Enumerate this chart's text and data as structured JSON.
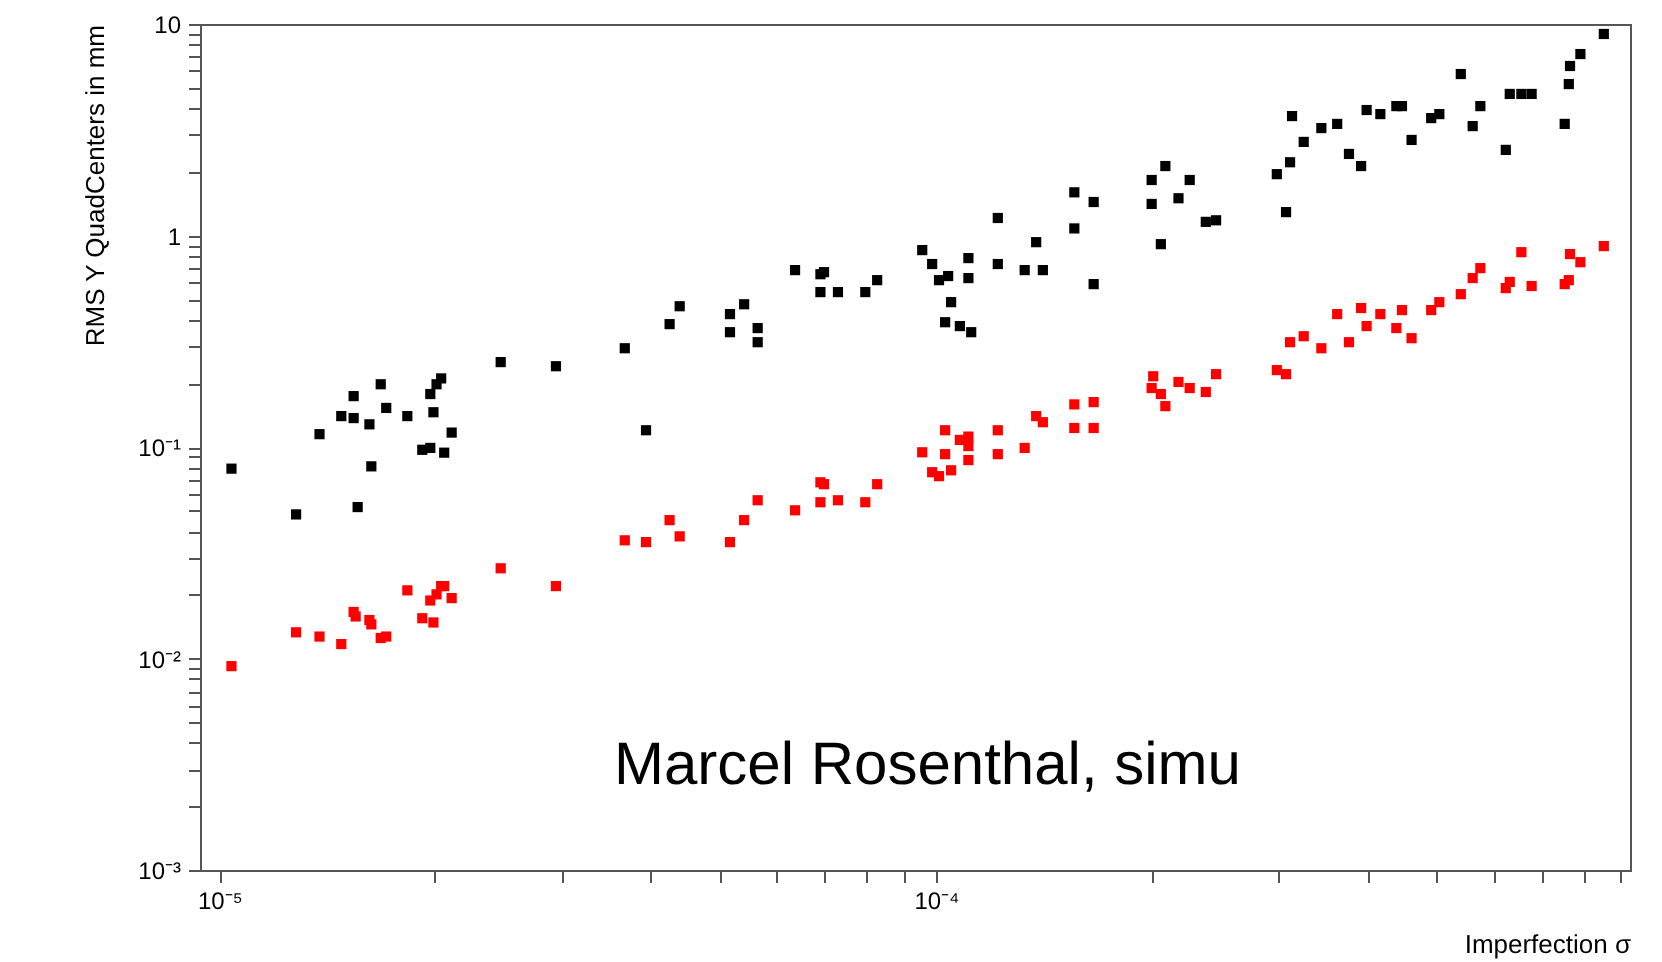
{
  "chart_data": {
    "type": "scatter",
    "xlabel": "Imperfection σ",
    "ylabel": "RMS Y QuadCenters in mm",
    "annotations": [
      "Marcel Rosenthal, simu"
    ],
    "log": "xy",
    "grid": false,
    "marker": "square",
    "xlim": [
      9.4e-06,
      0.00093
    ],
    "ylim": [
      0.001,
      10
    ],
    "xticks": [
      {
        "value": 1e-05,
        "label": "10⁻⁵"
      },
      {
        "value": 2e-05,
        "label": null
      },
      {
        "value": 3e-05,
        "label": null
      },
      {
        "value": 4e-05,
        "label": null
      },
      {
        "value": 5e-05,
        "label": null
      },
      {
        "value": 6e-05,
        "label": null
      },
      {
        "value": 7e-05,
        "label": null
      },
      {
        "value": 8e-05,
        "label": null
      },
      {
        "value": 9e-05,
        "label": null
      },
      {
        "value": 0.0001,
        "label": "10⁻⁴"
      },
      {
        "value": 0.0002,
        "label": null
      },
      {
        "value": 0.0003,
        "label": null
      },
      {
        "value": 0.0004,
        "label": null
      },
      {
        "value": 0.0005,
        "label": null
      },
      {
        "value": 0.0006,
        "label": null
      },
      {
        "value": 0.0007,
        "label": null
      },
      {
        "value": 0.0008,
        "label": null
      },
      {
        "value": 0.0009,
        "label": null
      }
    ],
    "yticks": [
      {
        "value": 0.001,
        "label": "10⁻³"
      },
      {
        "value": 0.002,
        "label": null
      },
      {
        "value": 0.003,
        "label": null
      },
      {
        "value": 0.004,
        "label": null
      },
      {
        "value": 0.005,
        "label": null
      },
      {
        "value": 0.006,
        "label": null
      },
      {
        "value": 0.007,
        "label": null
      },
      {
        "value": 0.008,
        "label": null
      },
      {
        "value": 0.009,
        "label": null
      },
      {
        "value": 0.01,
        "label": "10⁻²"
      },
      {
        "value": 0.02,
        "label": null
      },
      {
        "value": 0.03,
        "label": null
      },
      {
        "value": 0.04,
        "label": null
      },
      {
        "value": 0.05,
        "label": null
      },
      {
        "value": 0.06,
        "label": null
      },
      {
        "value": 0.07,
        "label": null
      },
      {
        "value": 0.08,
        "label": null
      },
      {
        "value": 0.09,
        "label": null
      },
      {
        "value": 0.1,
        "label": "10⁻¹"
      },
      {
        "value": 0.2,
        "label": null
      },
      {
        "value": 0.3,
        "label": null
      },
      {
        "value": 0.4,
        "label": null
      },
      {
        "value": 0.5,
        "label": null
      },
      {
        "value": 0.6,
        "label": null
      },
      {
        "value": 0.7,
        "label": null
      },
      {
        "value": 0.8,
        "label": null
      },
      {
        "value": 0.9,
        "label": null
      },
      1,
      {
        "value": 2,
        "label": null
      },
      {
        "value": 3,
        "label": null
      },
      {
        "value": 4,
        "label": null
      },
      {
        "value": 5,
        "label": null
      },
      {
        "value": 6,
        "label": null
      },
      {
        "value": 7,
        "label": null
      },
      {
        "value": 8,
        "label": null
      },
      {
        "value": 9,
        "label": null
      },
      10
    ],
    "series": [
      {
        "color": "#000000",
        "x": [
          1.04e-05,
          1.28e-05,
          1.38e-05,
          1.48e-05,
          1.54e-05,
          1.54e-05,
          1.56e-05,
          1.62e-05,
          1.63e-05,
          1.68e-05,
          1.71e-05,
          1.83e-05,
          1.92e-05,
          1.97e-05,
          1.97e-05,
          1.99e-05,
          2.01e-05,
          2.04e-05,
          2.06e-05,
          2.11e-05,
          2.47e-05,
          2.95e-05,
          3.68e-05,
          3.94e-05,
          4.25e-05,
          4.39e-05,
          5.16e-05,
          5.4e-05,
          5.16e-05,
          5.64e-05,
          5.64e-05,
          6.36e-05,
          6.9e-05,
          6.98e-05,
          6.9e-05,
          7.3e-05,
          7.97e-05,
          8.28e-05,
          9.57e-05,
          9.88e-05,
          0.000101,
          0.000104,
          0.000105,
          0.000103,
          0.000108,
          0.000112,
          0.000111,
          0.000111,
          0.000122,
          0.000122,
          0.000133,
          0.000138,
          0.000141,
          0.000156,
          0.000166,
          0.000156,
          0.000166,
          0.0002,
          0.000209,
          0.0002,
          0.000218,
          0.000226,
          0.000206,
          0.000238,
          0.000246,
          0.000299,
          0.000312,
          0.000314,
          0.000308,
          0.000326,
          0.000345,
          0.000363,
          0.000377,
          0.000392,
          0.000399,
          0.000417,
          0.000439,
          0.000447,
          0.000461,
          0.000491,
          0.000504,
          0.00054,
          0.000561,
          0.000575,
          0.000624,
          0.000632,
          0.000656,
          0.000678,
          0.000754,
          0.000764,
          0.000767,
          0.000793,
          0.000855
        ],
        "values": [
          0.079,
          0.048,
          0.115,
          0.14,
          0.174,
          0.137,
          0.052,
          0.128,
          0.081,
          0.198,
          0.153,
          0.14,
          0.097,
          0.099,
          0.178,
          0.146,
          0.198,
          0.211,
          0.094,
          0.117,
          0.252,
          0.241,
          0.293,
          0.12,
          0.381,
          0.463,
          0.425,
          0.473,
          0.349,
          0.365,
          0.313,
          0.686,
          0.656,
          0.671,
          0.54,
          0.54,
          0.54,
          0.615,
          0.853,
          0.733,
          0.615,
          0.643,
          0.484,
          0.389,
          0.373,
          0.349,
          0.782,
          0.629,
          1.21,
          0.733,
          0.686,
          0.93,
          0.686,
          1.6,
          1.44,
          1.08,
          0.589,
          1.83,
          2.13,
          1.41,
          1.5,
          1.83,
          0.91,
          1.16,
          1.18,
          1.95,
          2.22,
          3.67,
          1.29,
          2.77,
          3.22,
          3.37,
          2.43,
          2.13,
          3.92,
          3.75,
          4.09,
          4.09,
          2.83,
          3.59,
          3.75,
          5.8,
          3.29,
          4.09,
          2.54,
          4.67,
          4.67,
          4.67,
          3.37,
          5.2,
          6.33,
          7.21,
          8.97
        ]
      },
      {
        "color": "#ff0000",
        "x": [
          1.04e-05,
          1.28e-05,
          1.38e-05,
          1.48e-05,
          1.54e-05,
          1.55e-05,
          1.62e-05,
          1.63e-05,
          1.68e-05,
          1.71e-05,
          1.83e-05,
          1.92e-05,
          1.97e-05,
          1.99e-05,
          2.01e-05,
          2.04e-05,
          2.06e-05,
          2.11e-05,
          2.47e-05,
          2.95e-05,
          3.68e-05,
          3.94e-05,
          4.25e-05,
          4.39e-05,
          5.16e-05,
          5.4e-05,
          5.64e-05,
          6.36e-05,
          6.9e-05,
          6.98e-05,
          6.9e-05,
          7.3e-05,
          7.97e-05,
          8.28e-05,
          9.57e-05,
          9.88e-05,
          0.000101,
          0.000105,
          0.000103,
          0.000103,
          0.000108,
          0.000111,
          0.000111,
          0.000111,
          0.000122,
          0.000122,
          0.000133,
          0.000138,
          0.000141,
          0.000156,
          0.000166,
          0.000156,
          0.000166,
          0.000201,
          0.0002,
          0.000206,
          0.000209,
          0.000218,
          0.000226,
          0.000238,
          0.000246,
          0.000299,
          0.000308,
          0.000312,
          0.000326,
          0.000345,
          0.000377,
          0.000363,
          0.000392,
          0.000399,
          0.000417,
          0.000439,
          0.000447,
          0.000461,
          0.000491,
          0.000504,
          0.00054,
          0.000561,
          0.000575,
          0.000624,
          0.000632,
          0.000656,
          0.000678,
          0.000754,
          0.000764,
          0.000767,
          0.000793,
          0.000855
        ],
        "values": [
          0.0092,
          0.0133,
          0.0127,
          0.0117,
          0.0166,
          0.0158,
          0.0152,
          0.0145,
          0.0125,
          0.0127,
          0.021,
          0.0155,
          0.0188,
          0.0148,
          0.0201,
          0.022,
          0.022,
          0.0193,
          0.0267,
          0.022,
          0.0362,
          0.0355,
          0.0451,
          0.0378,
          0.0355,
          0.0451,
          0.056,
          0.0502,
          0.0681,
          0.0667,
          0.0548,
          0.056,
          0.0548,
          0.0667,
          0.0944,
          0.076,
          0.0728,
          0.0776,
          0.12,
          0.0925,
          0.108,
          0.112,
          0.101,
          0.0867,
          0.12,
          0.0925,
          0.099,
          0.14,
          0.131,
          0.159,
          0.163,
          0.123,
          0.123,
          0.216,
          0.19,
          0.178,
          0.156,
          0.203,
          0.19,
          0.182,
          0.221,
          0.231,
          0.221,
          0.313,
          0.334,
          0.293,
          0.313,
          0.425,
          0.454,
          0.373,
          0.425,
          0.365,
          0.444,
          0.327,
          0.444,
          0.484,
          0.528,
          0.629,
          0.701,
          0.564,
          0.603,
          0.834,
          0.577,
          0.589,
          0.615,
          0.817,
          0.748,
          0.891
        ]
      }
    ]
  }
}
